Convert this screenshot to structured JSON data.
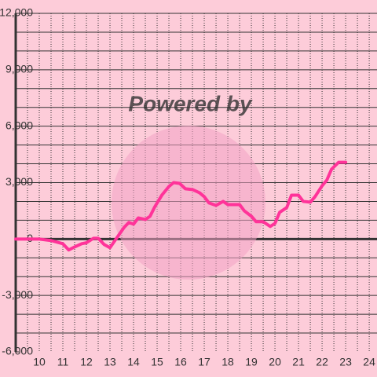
{
  "chart_data": {
    "type": "line",
    "watermark": "Powered by",
    "x": [
      9,
      10,
      10.5,
      11,
      11.25,
      11.5,
      11.8,
      12,
      12.3,
      12.5,
      12.75,
      13,
      13.3,
      13.6,
      13.8,
      14,
      14.2,
      14.5,
      14.7,
      14.9,
      15.2,
      15.5,
      15.7,
      15.95,
      16.2,
      16.5,
      16.8,
      17,
      17.2,
      17.5,
      17.8,
      18,
      18.5,
      18.7,
      19,
      19.2,
      19.5,
      19.8,
      20,
      20.2,
      20.5,
      20.7,
      21,
      21.2,
      21.5,
      21.7,
      22,
      22.2,
      22.4,
      22.7,
      23
    ],
    "values": [
      0,
      0,
      -80,
      -250,
      -580,
      -420,
      -250,
      -200,
      40,
      40,
      -290,
      -460,
      80,
      620,
      880,
      790,
      1120,
      1040,
      1210,
      1710,
      2330,
      2790,
      3000,
      2960,
      2670,
      2630,
      2460,
      2250,
      1920,
      1790,
      2000,
      1830,
      1830,
      1500,
      1210,
      920,
      920,
      670,
      830,
      1420,
      1670,
      2330,
      2330,
      2000,
      1960,
      2250,
      2830,
      3130,
      3710,
      4080,
      4080
    ],
    "color": "#ff3399",
    "xlim": [
      9,
      24.33
    ],
    "ylim": [
      -6000,
      12000
    ],
    "xticks": [
      10,
      11,
      12,
      13,
      14,
      15,
      16,
      17,
      18,
      19,
      20,
      21,
      22,
      23,
      24
    ],
    "yticks": [
      {
        "value": -6000,
        "label": "-6,000"
      },
      {
        "value": -3000,
        "label": "-3,000"
      },
      0,
      {
        "value": 3000,
        "label": "3,000"
      },
      {
        "value": 6000,
        "label": "6,000"
      },
      {
        "value": 9000,
        "label": "9,000"
      },
      {
        "value": 12000,
        "label": "12,000"
      }
    ],
    "ygrid": [
      -5000,
      -4000,
      -3000,
      -2000,
      -1000,
      1000,
      2000,
      3000,
      4000,
      5000,
      6000,
      7000,
      8000,
      9000,
      10000,
      11000,
      12000
    ],
    "xgrid": [
      9.5,
      10,
      10.5,
      11,
      11.5,
      12,
      12.5,
      13,
      13.5,
      14,
      14.5,
      15,
      15.5,
      16,
      16.5,
      17,
      17.5,
      18,
      18.5,
      19,
      19.5,
      20,
      20.5,
      21,
      21.5,
      22,
      22.5,
      23,
      23.5,
      24
    ]
  }
}
